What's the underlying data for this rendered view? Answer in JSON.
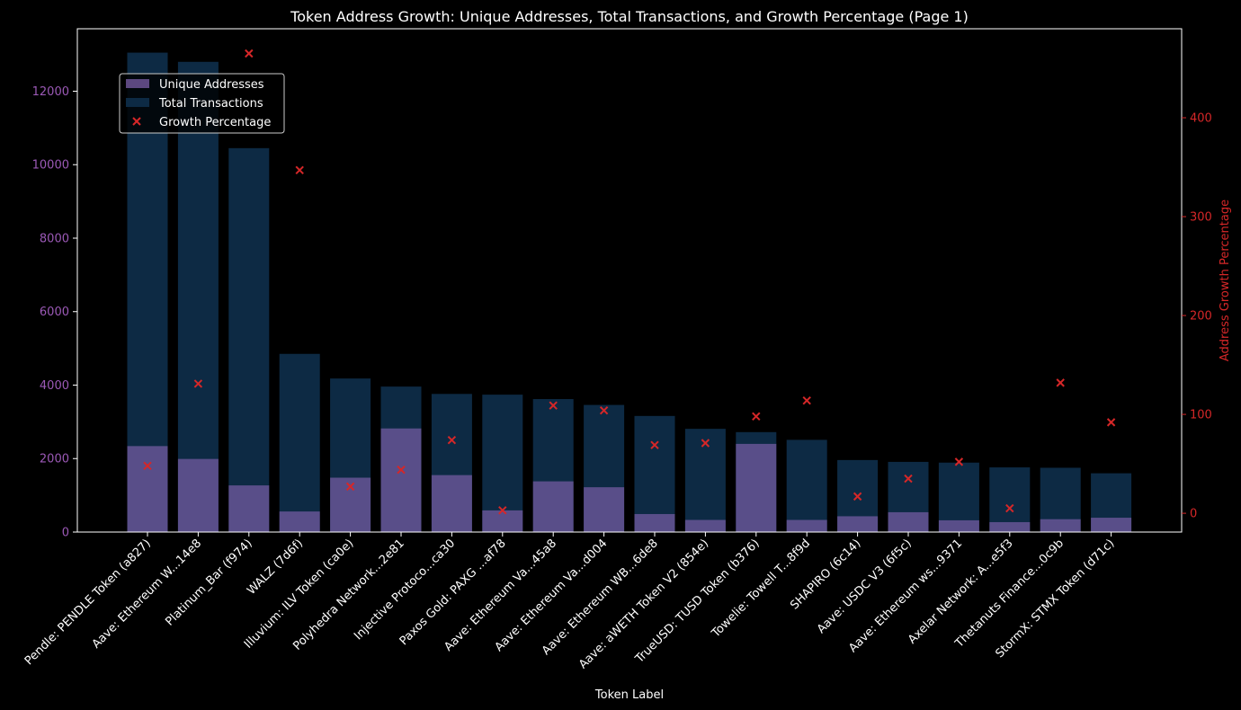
{
  "chart_data": {
    "type": "bar",
    "title": "Token Address Growth: Unique Addresses, Total Transactions, and Growth Percentage (Page 1)",
    "xlabel": "Token Label",
    "ylabel": "",
    "y2label": "Address Growth Percentage",
    "ylim": [
      0,
      13700
    ],
    "y2lim": [
      -19,
      490
    ],
    "yticks": [
      0,
      2000,
      4000,
      6000,
      8000,
      10000,
      12000
    ],
    "y2ticks": [
      0,
      100,
      200,
      300,
      400
    ],
    "legend_position": "upper-left",
    "grid": false,
    "categories": [
      "Pendle: PENDLE Token (a827)",
      "Aave:  Ethereum W...14e8",
      "Platinum_Bar (f974)",
      "WALZ (7d6f)",
      "Illuvium: ILV Token (ca0e)",
      "Polyhedra Network...2e81",
      "Injective Protoco...ca30",
      "Paxos Gold: PAXG ...af78",
      "Aave: Ethereum Va...45a8",
      "Aave: Ethereum Va...d004",
      "Aave: Ethereum WB...6de8",
      "Aave: aWETH Token V2 (854e)",
      "TrueUSD: TUSD Token (b376)",
      "Towelie: Towell T...8f9d",
      "SHAPIRO (6c14)",
      "Aave: USDC V3 (6f5c)",
      "Aave: Ethereum ws...9371",
      "Axelar Network: A...e5f3",
      "Thetanuts Finance...0c9b",
      "StormX: STMX Token (d71c)"
    ],
    "series": [
      {
        "name": "Unique Addresses",
        "kind": "bar",
        "color": "#7b5ea7",
        "values": [
          2340,
          1990,
          1270,
          560,
          1480,
          2820,
          1550,
          590,
          1380,
          1220,
          490,
          330,
          2400,
          330,
          430,
          540,
          320,
          270,
          350,
          390
        ]
      },
      {
        "name": "Total Transactions",
        "kind": "bar",
        "color": "#0d2a44",
        "values": [
          13050,
          12800,
          10450,
          4850,
          4180,
          3960,
          3760,
          3740,
          3620,
          3460,
          3160,
          2810,
          2720,
          2510,
          1960,
          1910,
          1890,
          1760,
          1750,
          1600
        ]
      },
      {
        "name": "Growth Percentage",
        "kind": "scatter",
        "axis": "right",
        "color": "#d62728",
        "values": [
          48,
          131,
          465,
          347,
          27,
          44,
          74,
          3,
          109,
          104,
          69,
          71,
          98,
          114,
          17,
          35,
          52,
          5,
          132,
          92
        ]
      }
    ]
  }
}
